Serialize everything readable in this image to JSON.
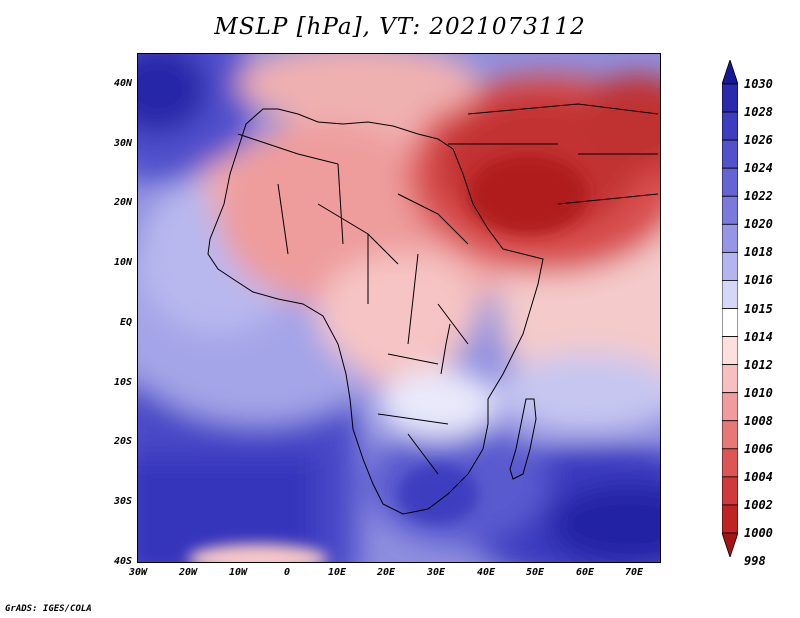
{
  "title": "MSLP [hPa], VT: 2021073112",
  "credit": "GrADS: IGES/COLA",
  "axes": {
    "lat_labels": [
      "40N",
      "30N",
      "20N",
      "10N",
      "EQ",
      "10S",
      "20S",
      "30S",
      "40S"
    ],
    "lon_labels": [
      "30W",
      "20W",
      "10W",
      "0",
      "10E",
      "20E",
      "30E",
      "40E",
      "50E",
      "60E",
      "70E"
    ]
  },
  "colorbar": {
    "levels": [
      "1030",
      "1028",
      "1026",
      "1024",
      "1022",
      "1020",
      "1018",
      "1016",
      "1015",
      "1014",
      "1012",
      "1010",
      "1008",
      "1006",
      "1004",
      "1002",
      "1000",
      "998"
    ],
    "colors": [
      "#17179a",
      "#2a2aad",
      "#3d3dc0",
      "#5252cb",
      "#6464d4",
      "#7a7adc",
      "#9696e4",
      "#b4b4ef",
      "#d6d6f7",
      "#ffffff",
      "#fce0e0",
      "#f7c0c0",
      "#f09c9c",
      "#e77878",
      "#dc5656",
      "#cf3a3a",
      "#bf2424",
      "#a51414"
    ]
  },
  "map": {
    "region": "Africa and Middle East",
    "field": "mean sea level pressure"
  }
}
